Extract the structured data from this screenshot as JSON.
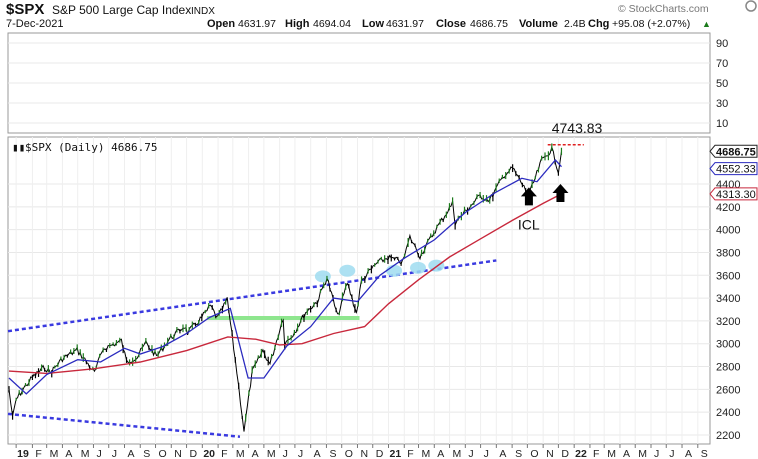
{
  "header": {
    "symbol": "$SPX",
    "name": "S&P 500 Large Cap Index",
    "exchange": "INDX",
    "date": "7-Dec-2021",
    "watermark": "© StockCharts.com",
    "open_label": "Open",
    "open": "4631.97",
    "high_label": "High",
    "high": "4694.04",
    "low_label": "Low",
    "low": "4631.97",
    "close_label": "Close",
    "close": "4686.75",
    "volume_label": "Volume",
    "volume": "2.4B",
    "chg_label": "Chg",
    "chg": "+95.08 (+2.07%)",
    "chg_arrow": "▲"
  },
  "colors": {
    "price_up": "#1b7a1b",
    "price_down": "#000000",
    "ma_short": "#2b2bbf",
    "ma_long": "#c8283c",
    "trendline": "#3a3ae0",
    "support": "#8ee68e",
    "highlight": "#9fdcf0",
    "ath_line": "#e02020",
    "arrows": "#000000"
  },
  "chart_data": [
    {
      "type": "line",
      "panel": "upper",
      "title": "",
      "ylim": [
        0,
        100
      ],
      "yticks": [
        10,
        30,
        50,
        70,
        90
      ],
      "series": []
    },
    {
      "type": "line",
      "panel": "price",
      "legend": "$SPX (Daily) 4686.75",
      "ylim": [
        2150,
        4900
      ],
      "yticks": [
        2200,
        2400,
        2600,
        2800,
        3000,
        3200,
        3400,
        3600,
        3800,
        4000,
        4200,
        4400
      ],
      "xlim": [
        "2018-12-15",
        "2022-09-25"
      ],
      "x_ticks": [
        {
          "date": "2018-12-31",
          "label": "19",
          "major": true
        },
        {
          "date": "2019-02-01",
          "label": "F"
        },
        {
          "date": "2019-03-01",
          "label": "M"
        },
        {
          "date": "2019-04-01",
          "label": "A"
        },
        {
          "date": "2019-05-01",
          "label": "M"
        },
        {
          "date": "2019-06-01",
          "label": "J"
        },
        {
          "date": "2019-07-01",
          "label": "J"
        },
        {
          "date": "2019-08-01",
          "label": "A"
        },
        {
          "date": "2019-09-01",
          "label": "S"
        },
        {
          "date": "2019-10-01",
          "label": "O"
        },
        {
          "date": "2019-11-01",
          "label": "N"
        },
        {
          "date": "2019-12-01",
          "label": "D"
        },
        {
          "date": "2020-01-01",
          "label": "20",
          "major": true
        },
        {
          "date": "2020-02-01",
          "label": "F"
        },
        {
          "date": "2020-03-01",
          "label": "M"
        },
        {
          "date": "2020-04-01",
          "label": "A"
        },
        {
          "date": "2020-05-01",
          "label": "M"
        },
        {
          "date": "2020-06-01",
          "label": "J"
        },
        {
          "date": "2020-07-01",
          "label": "J"
        },
        {
          "date": "2020-08-01",
          "label": "A"
        },
        {
          "date": "2020-09-01",
          "label": "S"
        },
        {
          "date": "2020-10-01",
          "label": "O"
        },
        {
          "date": "2020-11-01",
          "label": "N"
        },
        {
          "date": "2020-12-01",
          "label": "D"
        },
        {
          "date": "2021-01-01",
          "label": "21",
          "major": true
        },
        {
          "date": "2021-02-01",
          "label": "F"
        },
        {
          "date": "2021-03-01",
          "label": "M"
        },
        {
          "date": "2021-04-01",
          "label": "A"
        },
        {
          "date": "2021-05-01",
          "label": "M"
        },
        {
          "date": "2021-06-01",
          "label": "J"
        },
        {
          "date": "2021-07-01",
          "label": "J"
        },
        {
          "date": "2021-08-01",
          "label": "A"
        },
        {
          "date": "2021-09-01",
          "label": "S"
        },
        {
          "date": "2021-10-01",
          "label": "O"
        },
        {
          "date": "2021-11-01",
          "label": "N"
        },
        {
          "date": "2021-12-01",
          "label": "D"
        },
        {
          "date": "2022-01-01",
          "label": "22",
          "major": true
        },
        {
          "date": "2022-02-01",
          "label": "F"
        },
        {
          "date": "2022-03-01",
          "label": "M"
        },
        {
          "date": "2022-04-01",
          "label": "A"
        },
        {
          "date": "2022-05-01",
          "label": "M"
        },
        {
          "date": "2022-06-01",
          "label": "J"
        },
        {
          "date": "2022-07-01",
          "label": "J"
        },
        {
          "date": "2022-08-01",
          "label": "A"
        },
        {
          "date": "2022-09-01",
          "label": "S"
        }
      ],
      "price": [
        [
          "2018-12-17",
          2600
        ],
        [
          "2018-12-24",
          2351
        ],
        [
          "2018-12-31",
          2510
        ],
        [
          "2019-01-15",
          2610
        ],
        [
          "2019-02-01",
          2705
        ],
        [
          "2019-02-25",
          2795
        ],
        [
          "2019-03-08",
          2745
        ],
        [
          "2019-04-01",
          2870
        ],
        [
          "2019-04-30",
          2945
        ],
        [
          "2019-05-15",
          2860
        ],
        [
          "2019-06-03",
          2745
        ],
        [
          "2019-06-20",
          2955
        ],
        [
          "2019-07-26",
          3025
        ],
        [
          "2019-08-05",
          2845
        ],
        [
          "2019-08-26",
          2880
        ],
        [
          "2019-09-12",
          3010
        ],
        [
          "2019-10-03",
          2890
        ],
        [
          "2019-10-28",
          3040
        ],
        [
          "2019-11-27",
          3155
        ],
        [
          "2019-12-03",
          3095
        ],
        [
          "2019-12-31",
          3230
        ],
        [
          "2020-01-17",
          3330
        ],
        [
          "2020-01-31",
          3225
        ],
        [
          "2020-02-19",
          3386
        ],
        [
          "2020-03-09",
          2750
        ],
        [
          "2020-03-23",
          2237
        ],
        [
          "2020-04-08",
          2750
        ],
        [
          "2020-04-29",
          2940
        ],
        [
          "2020-05-13",
          2820
        ],
        [
          "2020-06-08",
          3232
        ],
        [
          "2020-06-11",
          3000
        ],
        [
          "2020-06-30",
          3100
        ],
        [
          "2020-07-22",
          3275
        ],
        [
          "2020-08-14",
          3370
        ],
        [
          "2020-09-02",
          3580
        ],
        [
          "2020-09-23",
          3237
        ],
        [
          "2020-10-12",
          3535
        ],
        [
          "2020-10-30",
          3270
        ],
        [
          "2020-11-09",
          3550
        ],
        [
          "2020-12-08",
          3702
        ],
        [
          "2020-12-31",
          3756
        ],
        [
          "2021-01-29",
          3714
        ],
        [
          "2021-02-12",
          3934
        ],
        [
          "2021-03-04",
          3768
        ],
        [
          "2021-03-31",
          3973
        ],
        [
          "2021-05-07",
          4232
        ],
        [
          "2021-05-12",
          4063
        ],
        [
          "2021-06-30",
          4297
        ],
        [
          "2021-07-19",
          4258
        ],
        [
          "2021-08-16",
          4479
        ],
        [
          "2021-09-02",
          4537
        ],
        [
          "2021-10-04",
          4300
        ],
        [
          "2021-10-29",
          4605
        ],
        [
          "2021-11-18",
          4705
        ],
        [
          "2021-12-01",
          4513
        ],
        [
          "2021-12-07",
          4686
        ]
      ],
      "ma_short": [
        [
          "2018-12-17",
          2700
        ],
        [
          "2019-01-20",
          2560
        ],
        [
          "2019-03-01",
          2730
        ],
        [
          "2019-05-01",
          2860
        ],
        [
          "2019-06-15",
          2840
        ],
        [
          "2019-08-01",
          2960
        ],
        [
          "2019-09-01",
          2910
        ],
        [
          "2019-10-15",
          2975
        ],
        [
          "2019-12-01",
          3090
        ],
        [
          "2020-01-15",
          3230
        ],
        [
          "2020-02-25",
          3310
        ],
        [
          "2020-03-31",
          2700
        ],
        [
          "2020-05-01",
          2700
        ],
        [
          "2020-06-15",
          2980
        ],
        [
          "2020-08-01",
          3150
        ],
        [
          "2020-09-15",
          3400
        ],
        [
          "2020-11-01",
          3370
        ],
        [
          "2020-12-15",
          3600
        ],
        [
          "2021-02-01",
          3750
        ],
        [
          "2021-04-01",
          3910
        ],
        [
          "2021-06-01",
          4150
        ],
        [
          "2021-08-01",
          4330
        ],
        [
          "2021-09-20",
          4450
        ],
        [
          "2021-10-20",
          4420
        ],
        [
          "2021-11-25",
          4610
        ],
        [
          "2021-12-07",
          4552
        ]
      ],
      "ma_long": [
        [
          "2018-12-17",
          2760
        ],
        [
          "2019-03-01",
          2740
        ],
        [
          "2019-06-01",
          2780
        ],
        [
          "2019-09-01",
          2840
        ],
        [
          "2019-12-01",
          2940
        ],
        [
          "2020-02-20",
          3060
        ],
        [
          "2020-04-15",
          3040
        ],
        [
          "2020-06-01",
          2990
        ],
        [
          "2020-07-15",
          3000
        ],
        [
          "2020-09-15",
          3090
        ],
        [
          "2020-11-15",
          3150
        ],
        [
          "2021-01-01",
          3350
        ],
        [
          "2021-03-01",
          3560
        ],
        [
          "2021-05-01",
          3760
        ],
        [
          "2021-07-01",
          3920
        ],
        [
          "2021-09-01",
          4080
        ],
        [
          "2021-11-01",
          4230
        ],
        [
          "2021-12-07",
          4313
        ]
      ],
      "trendline_upper": [
        [
          "2018-12-15",
          3110
        ],
        [
          "2021-08-01",
          3730
        ]
      ],
      "trendline_lower": [
        [
          "2018-12-15",
          2385
        ],
        [
          "2020-03-15",
          2185
        ]
      ],
      "support_line": [
        [
          "2020-01-10",
          3225
        ],
        [
          "2020-11-05",
          3225
        ]
      ],
      "highlights": [
        [
          "2020-08-25",
          3590
        ],
        [
          "2020-10-12",
          3640
        ],
        [
          "2021-01-12",
          3640
        ],
        [
          "2021-02-28",
          3665
        ],
        [
          "2021-04-05",
          3685
        ]
      ],
      "ath": {
        "label": "4743.83",
        "value": 4743.83,
        "from": "2021-11-10",
        "to": "2022-01-20"
      },
      "icl_label": "ICL",
      "icl_arrow": [
        "2021-10-04",
        4370
      ],
      "second_arrow": [
        "2021-12-05",
        4400
      ],
      "value_tags": [
        {
          "label": "4686.75",
          "value": 4686.75,
          "style": "close"
        },
        {
          "label": "4552.33",
          "value": 4552.33,
          "style": "ma_short"
        },
        {
          "label": "4313.30",
          "value": 4313.3,
          "style": "ma_long"
        }
      ]
    }
  ]
}
